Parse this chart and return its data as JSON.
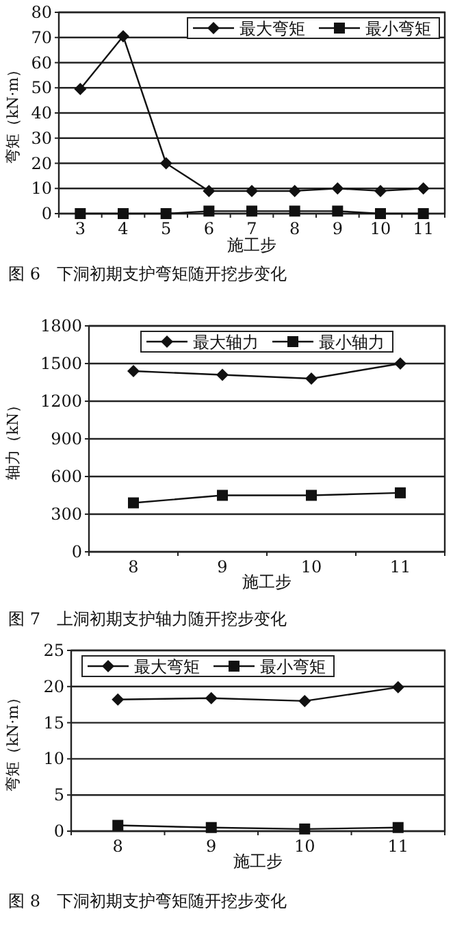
{
  "chart_data": [
    {
      "type": "line",
      "title": "图 6　下洞初期支护弯矩随开挖步变化",
      "xlabel": "施工步",
      "ylabel": "弯矩（kN·m）",
      "categories": [
        "3",
        "4",
        "5",
        "6",
        "7",
        "8",
        "9",
        "10",
        "11"
      ],
      "ylim": [
        0,
        80
      ],
      "yticks": [
        0,
        10,
        20,
        30,
        40,
        50,
        60,
        70,
        80
      ],
      "grid": "y",
      "legend": "top right",
      "series": [
        {
          "name": "最大弯矩",
          "color": "#111111",
          "marker": "diamond",
          "values": [
            49.5,
            70.5,
            20,
            9,
            9,
            9,
            10,
            9,
            10
          ]
        },
        {
          "name": "最小弯矩",
          "color": "#111111",
          "marker": "square",
          "values": [
            0,
            0,
            0,
            1,
            1,
            1,
            1,
            0,
            0
          ]
        }
      ]
    },
    {
      "type": "line",
      "title": "图 7　上洞初期支护轴力随开挖步变化",
      "xlabel": "施工步",
      "ylabel": "轴力（kN）",
      "categories": [
        "8",
        "9",
        "10",
        "11"
      ],
      "ylim": [
        0,
        1800
      ],
      "yticks": [
        0,
        300,
        600,
        900,
        1200,
        1500,
        1800
      ],
      "grid": "y",
      "legend": "top",
      "series": [
        {
          "name": "最大轴力",
          "color": "#111111",
          "marker": "diamond",
          "values": [
            1440,
            1410,
            1380,
            1500
          ]
        },
        {
          "name": "最小轴力",
          "color": "#111111",
          "marker": "square",
          "values": [
            390,
            450,
            450,
            470
          ]
        }
      ]
    },
    {
      "type": "line",
      "title": "图 8　下洞初期支护弯矩随开挖步变化",
      "xlabel": "施工步",
      "ylabel": "弯矩（kN·m）",
      "categories": [
        "8",
        "9",
        "10",
        "11"
      ],
      "ylim": [
        0,
        25
      ],
      "yticks": [
        0,
        5,
        10,
        15,
        20,
        25
      ],
      "grid": "y",
      "legend": "top left",
      "series": [
        {
          "name": "最大弯矩",
          "color": "#111111",
          "marker": "diamond",
          "values": [
            18.2,
            18.4,
            18,
            19.9
          ]
        },
        {
          "name": "最小弯矩",
          "color": "#111111",
          "marker": "square",
          "values": [
            0.8,
            0.5,
            0.3,
            0.5
          ]
        }
      ]
    }
  ]
}
